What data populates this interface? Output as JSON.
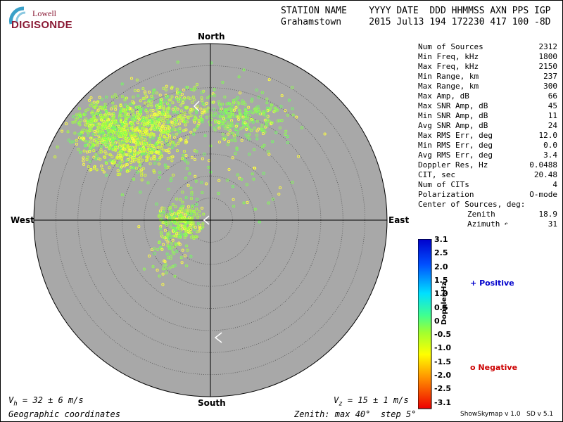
{
  "logo": {
    "top": "Lowell",
    "main": "DIGISONDE"
  },
  "header": {
    "labels": "STATION NAME    YYYY DATE  DDD HHMMSS AXN PPS IGP",
    "values": "Grahamstown     2015 Jul13 194 172230 417 100 -8D"
  },
  "stats": [
    {
      "k": "Num of Sources",
      "v": "2312"
    },
    {
      "k": "Min Freq, kHz",
      "v": "1800"
    },
    {
      "k": "Max Freq, kHz",
      "v": "2150"
    },
    {
      "k": "Min Range, km",
      "v": "237"
    },
    {
      "k": "Max Range, km",
      "v": "300"
    },
    {
      "k": "Max Amp, dB",
      "v": "66"
    },
    {
      "k": "Max SNR Amp, dB",
      "v": "45"
    },
    {
      "k": "Min SNR Amp, dB",
      "v": "11"
    },
    {
      "k": "Avg SNR Amp, dB",
      "v": "24"
    },
    {
      "k": "Max RMS Err, deg",
      "v": "12.0"
    },
    {
      "k": "Min RMS Err, deg",
      "v": "0.0"
    },
    {
      "k": "Avg RMS Err, deg",
      "v": "3.4"
    },
    {
      "k": "Doppler Res, Hz",
      "v": "0.0488"
    },
    {
      "k": "CIT, sec",
      "v": "20.48"
    },
    {
      "k": "Num of CITs",
      "v": "4"
    },
    {
      "k": "Polarization",
      "v": "O-mode"
    },
    {
      "k": "Center of Sources, deg:",
      "v": ""
    },
    {
      "k": "Zenith",
      "v": "18.9"
    },
    {
      "k": "Azimuth",
      "v": "31"
    }
  ],
  "azimuth_marker": "↶",
  "directions": {
    "north": "North",
    "south": "South",
    "west": "West",
    "east": "East"
  },
  "footer": {
    "vh": "32 ± 6 m/s",
    "vz": "15 ± 1 m/s",
    "coords": "Geographic coordinates",
    "zenith": "Zenith: max 40°  step 5°"
  },
  "colorbar": {
    "title": "Doppler,Hz",
    "ticks": [
      "3.1",
      "2.5",
      "2.0",
      "1.5",
      "1.0",
      "0.5",
      "0",
      "-0.5",
      "-1.0",
      "-1.5",
      "-2.0",
      "-2.5",
      "-3.1"
    ],
    "range": [
      -3.1,
      3.1
    ]
  },
  "legend": {
    "positive": "Positive",
    "negative": "Negative",
    "positive_color": "#0000cc",
    "negative_color": "#cc0000"
  },
  "version": "ShowSkymap v 1.0   SD v 5.1",
  "colors": {
    "disc": "#a8a8a8",
    "point": "#80ff40",
    "ring": "#555555"
  }
}
